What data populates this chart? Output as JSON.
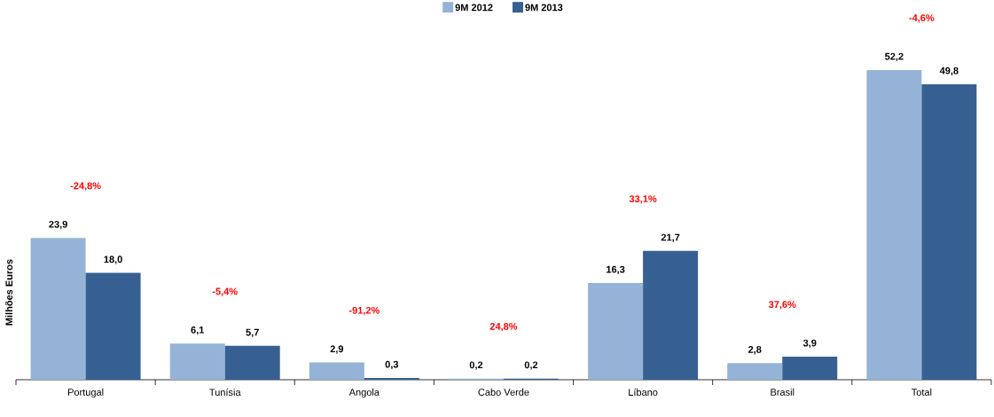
{
  "chart_data": {
    "type": "bar",
    "ylabel": "Milhões Euros",
    "categories": [
      "Portugal",
      "Tunísia",
      "Angola",
      "Cabo Verde",
      "Líbano",
      "Brasil",
      "Total"
    ],
    "series": [
      {
        "name": "9M 2012",
        "color": "#95b3d7",
        "values": [
          23.9,
          6.1,
          2.9,
          0.2,
          16.3,
          2.8,
          52.2
        ],
        "value_labels": [
          "23,9",
          "6,1",
          "2,9",
          "0,2",
          "16,3",
          "2,8",
          "52,2"
        ]
      },
      {
        "name": "9M 2013",
        "color": "#366092",
        "values": [
          18.0,
          5.7,
          0.3,
          0.2,
          21.7,
          3.9,
          49.8
        ],
        "value_labels": [
          "18,0",
          "5,7",
          "0,3",
          "0,2",
          "21,7",
          "3,9",
          "49,8"
        ]
      }
    ],
    "annotations": [
      "-24,8%",
      "-5,4%",
      "-91,2%",
      "24,8%",
      "33,1%",
      "37,6%",
      "-4,6%"
    ],
    "ylim": [
      0,
      64
    ],
    "tick_labels": "x",
    "legend": "top"
  }
}
